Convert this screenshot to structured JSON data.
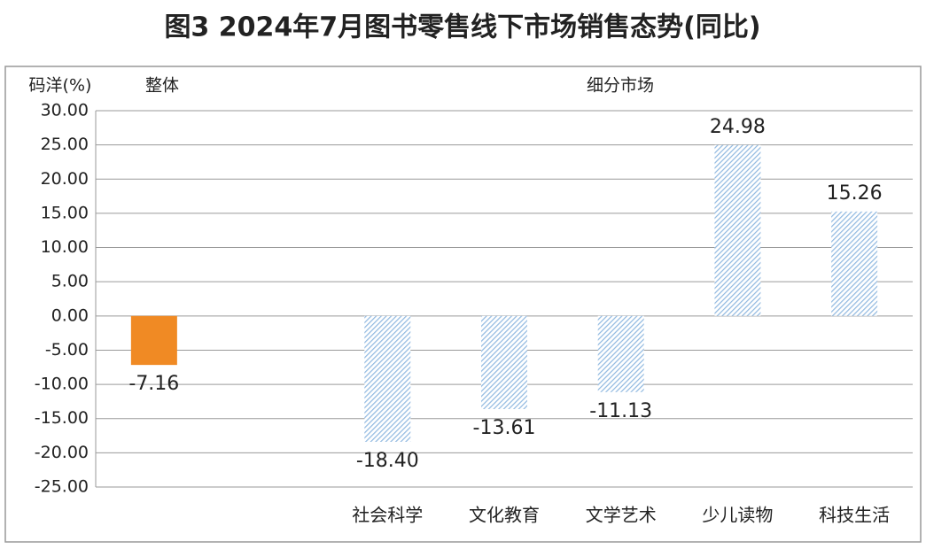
{
  "chart_data": {
    "type": "bar",
    "title": "图3 2024年7月图书零售线下市场销售态势(同比)",
    "y_label": "码洋(%)",
    "annotations": [
      "整体",
      "细分市场"
    ],
    "categories": [
      null,
      null,
      "社会科学",
      "文化教育",
      "文学艺术",
      "少儿读物",
      "科技生活"
    ],
    "values": [
      -7.16,
      null,
      -18.4,
      -13.61,
      -11.13,
      24.98,
      15.26
    ],
    "value_labels": [
      "-7.16",
      null,
      "-18.40",
      "-13.61",
      "-11.13",
      "24.98",
      "15.26"
    ],
    "colors": [
      "#f08a24",
      null,
      "#8fb8e0",
      "#8fb8e0",
      "#8fb8e0",
      "#8fb8e0",
      "#8fb8e0"
    ],
    "hatched": [
      false,
      null,
      true,
      true,
      true,
      true,
      true
    ],
    "ylim": [
      -25,
      30
    ],
    "yticks": [
      {
        "value": -25,
        "label": "-25.00"
      },
      {
        "value": -20,
        "label": "-20.00"
      },
      {
        "value": -15,
        "label": "-15.00"
      },
      {
        "value": -10,
        "label": "-10.00"
      },
      {
        "value": -5,
        "label": "-5.00"
      },
      {
        "value": 0,
        "label": "0.00"
      },
      {
        "value": 5,
        "label": "5.00"
      },
      {
        "value": 10,
        "label": "10.00"
      },
      {
        "value": 15,
        "label": "15.00"
      },
      {
        "value": 20,
        "label": "20.00"
      },
      {
        "value": 25,
        "label": "25.00"
      },
      {
        "value": 30,
        "label": "30.00"
      }
    ],
    "grid": true
  }
}
